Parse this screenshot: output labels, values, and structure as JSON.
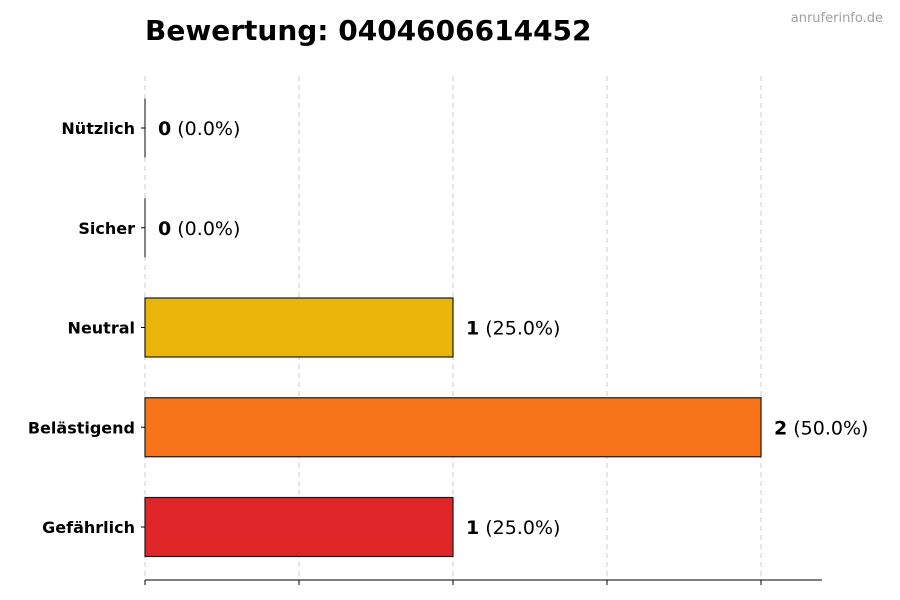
{
  "watermark": "anruferinfo.de",
  "chart_data": {
    "type": "bar",
    "orientation": "horizontal",
    "title": "Bewertung: 0404606614452",
    "xlabel": "",
    "ylabel": "",
    "xlim": [
      0,
      2.2
    ],
    "grid": true,
    "legend": "none",
    "categories": [
      "Nützlich",
      "Sicher",
      "Neutral",
      "Belästigend",
      "Gefährlich"
    ],
    "values": [
      0,
      0,
      1,
      2,
      1
    ],
    "percent_labels": [
      "(0.0%)",
      "(0.0%)",
      "(25.0%)",
      "(50.0%)",
      "(25.0%)"
    ],
    "colors": [
      "#2e9e44",
      "#3f7fd6",
      "#e9b50b",
      "#f7741a",
      "#de2528"
    ]
  }
}
